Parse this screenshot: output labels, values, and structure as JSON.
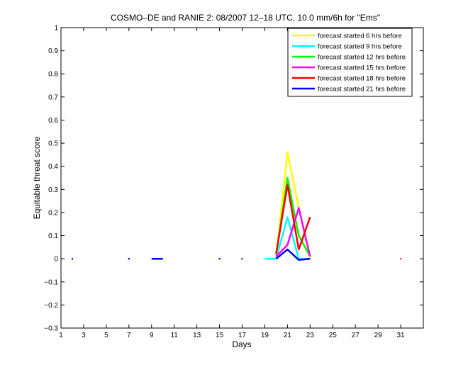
{
  "chart_data": {
    "type": "line",
    "title": "COSMO–DE and RANIE 2: 08/2007 12–18 UTC, 10.0 mm/6h for \"Ems\"",
    "xlabel": "Days",
    "ylabel": "Equitable threat score",
    "xlim": [
      1,
      33
    ],
    "ylim": [
      -0.3,
      1
    ],
    "xticks": [
      1,
      3,
      5,
      7,
      9,
      11,
      13,
      15,
      17,
      19,
      21,
      23,
      25,
      27,
      29,
      31
    ],
    "xtick_labels": [
      "1",
      "3",
      "5",
      "7",
      "9",
      "11",
      "13",
      "15",
      "17",
      "19",
      "21",
      "23",
      "25",
      "27",
      "29",
      "31"
    ],
    "yticks": [
      -0.3,
      -0.2,
      -0.1,
      0,
      0.1,
      0.2,
      0.3,
      0.4,
      0.5,
      0.6,
      0.7,
      0.8,
      0.9,
      1
    ],
    "ytick_labels": [
      "−0.3",
      "−0.2",
      "−0.1",
      "0",
      "0.1",
      "0.2",
      "0.3",
      "0.4",
      "0.5",
      "0.6",
      "0.7",
      "0.8",
      "0.9",
      "1"
    ],
    "grid": false,
    "legend_position": "top-right",
    "series": [
      {
        "name": "forecast started 6 hrs before",
        "color": "#ffff00",
        "segments": [
          [
            [
              20,
              0
            ],
            [
              21,
              0.46
            ],
            [
              22,
              0.22
            ],
            [
              23,
              0
            ]
          ]
        ],
        "dots": [
          [
            2,
            0
          ],
          [
            7,
            0
          ],
          [
            9.5,
            0
          ],
          [
            15,
            0
          ],
          [
            17,
            0
          ]
        ]
      },
      {
        "name": "forecast started 9 hrs before",
        "color": "#00ffff",
        "segments": [
          [
            [
              19,
              0
            ],
            [
              20,
              0
            ],
            [
              21,
              0.18
            ],
            [
              22,
              0
            ],
            [
              23,
              0
            ]
          ]
        ],
        "dots": [
          [
            2,
            0
          ],
          [
            7,
            0
          ],
          [
            9.5,
            0
          ],
          [
            15,
            0
          ],
          [
            17,
            0
          ]
        ]
      },
      {
        "name": "forecast started 12 hrs before",
        "color": "#00ff00",
        "segments": [
          [
            [
              20,
              0.02
            ],
            [
              21,
              0.35
            ],
            [
              22,
              0.1
            ],
            [
              23,
              0.01
            ]
          ]
        ],
        "dots": [
          [
            2,
            0
          ],
          [
            7,
            0
          ],
          [
            9.5,
            0
          ],
          [
            15,
            0
          ],
          [
            17,
            0
          ]
        ]
      },
      {
        "name": "forecast started 15 hrs before",
        "color": "#ff00ff",
        "segments": [
          [
            [
              20,
              0.01
            ],
            [
              21,
              0.06
            ],
            [
              22,
              0.22
            ],
            [
              23,
              0.01
            ]
          ]
        ],
        "dots": [
          [
            2,
            0
          ],
          [
            7,
            0
          ],
          [
            9.5,
            0
          ],
          [
            15,
            0
          ],
          [
            17,
            0
          ]
        ]
      },
      {
        "name": "forecast started 18 hrs before",
        "color": "#ff0000",
        "segments": [
          [
            [
              20,
              0.02
            ],
            [
              21,
              0.32
            ],
            [
              22,
              0.04
            ],
            [
              23,
              0.18
            ]
          ]
        ],
        "dots": [
          [
            2,
            0
          ],
          [
            7,
            0
          ],
          [
            9.5,
            0
          ],
          [
            15,
            0
          ],
          [
            17,
            0
          ],
          [
            31,
            0
          ]
        ]
      },
      {
        "name": "forecast started 21 hrs before",
        "color": "#0000ff",
        "segments": [
          [
            [
              20,
              0
            ],
            [
              21,
              0.04
            ],
            [
              22,
              -0.005
            ],
            [
              23,
              0
            ]
          ],
          [
            [
              9,
              0
            ],
            [
              10,
              0
            ]
          ]
        ],
        "dots": [
          [
            2,
            0
          ],
          [
            7,
            0
          ],
          [
            15,
            0
          ],
          [
            17,
            0
          ]
        ]
      }
    ]
  }
}
